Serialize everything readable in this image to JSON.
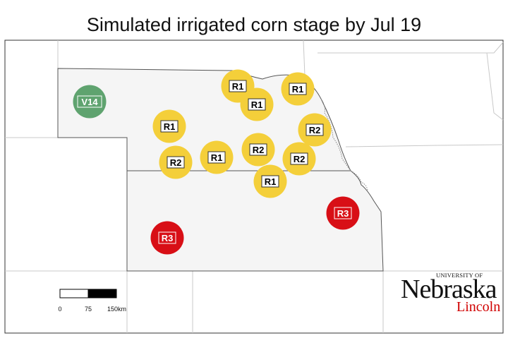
{
  "title": "Simulated irrigated corn stage by Jul 19",
  "stage_colors": {
    "V14": "#5fa36f",
    "R1": "#f4cf3a",
    "R2": "#f4cf3a",
    "R3": "#d80f16"
  },
  "sites": [
    {
      "stage": "V14"
    },
    {
      "stage": "R1"
    },
    {
      "stage": "R1"
    },
    {
      "stage": "R1"
    },
    {
      "stage": "R1"
    },
    {
      "stage": "R2"
    },
    {
      "stage": "R2"
    },
    {
      "stage": "R1"
    },
    {
      "stage": "R2"
    },
    {
      "stage": "R2"
    },
    {
      "stage": "R1"
    },
    {
      "stage": "R3"
    },
    {
      "stage": "R3"
    }
  ],
  "scale_bar": {
    "labels": [
      "0",
      "75",
      "150km"
    ]
  },
  "logo": {
    "university": "UNIVERSITY OF",
    "name": "Nebraska",
    "city": "Lincoln"
  }
}
